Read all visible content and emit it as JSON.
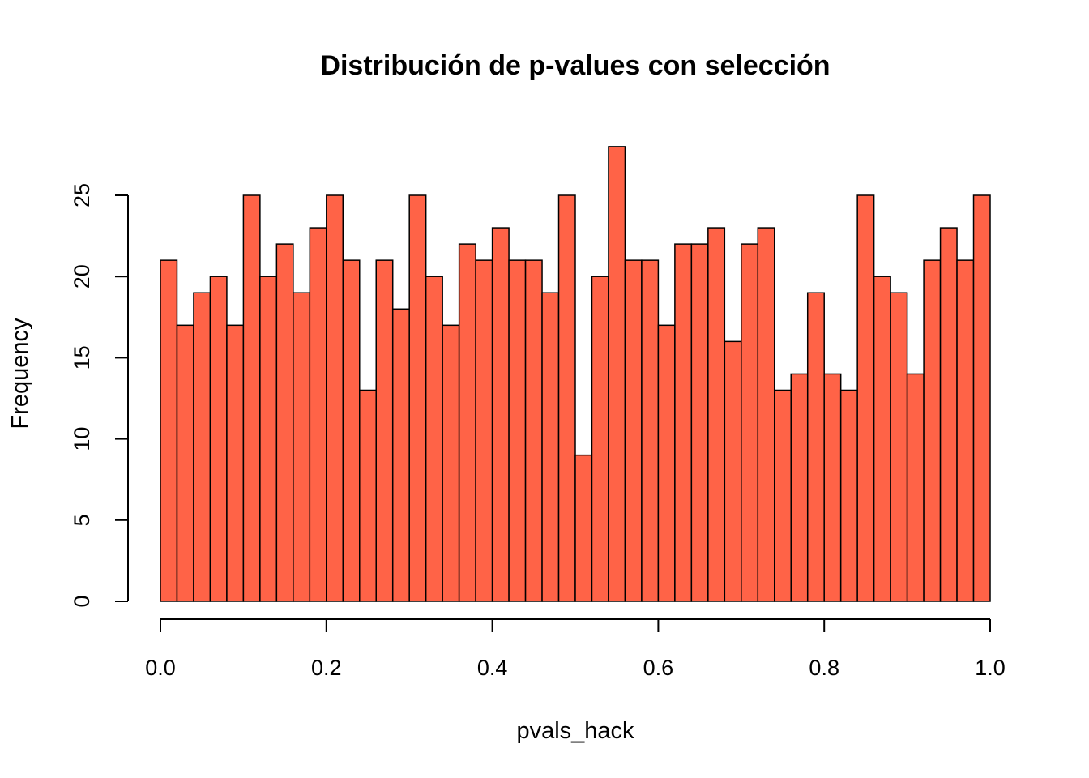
{
  "chart_data": {
    "type": "bar",
    "title": "Distribución de p-values con selección",
    "xlabel": "pvals_hack",
    "ylabel": "Frequency",
    "bar_color": "#FF6347",
    "xlim": [
      0.0,
      1.0
    ],
    "ylim": [
      0,
      28
    ],
    "x_ticks": [
      0.0,
      0.2,
      0.4,
      0.6,
      0.8,
      1.0
    ],
    "x_tick_labels": [
      "0.0",
      "0.2",
      "0.4",
      "0.6",
      "0.8",
      "1.0"
    ],
    "y_ticks": [
      0,
      5,
      10,
      15,
      20,
      25
    ],
    "y_tick_labels": [
      "0",
      "5",
      "10",
      "15",
      "20",
      "25"
    ],
    "bin_width": 0.02,
    "bin_start": 0.0,
    "values": [
      21,
      17,
      19,
      20,
      17,
      25,
      20,
      22,
      19,
      23,
      25,
      21,
      13,
      21,
      18,
      25,
      20,
      17,
      22,
      21,
      23,
      21,
      21,
      19,
      25,
      9,
      20,
      28,
      21,
      21,
      17,
      22,
      22,
      23,
      16,
      22,
      23,
      13,
      14,
      19,
      14,
      13,
      25,
      20,
      19,
      14,
      21,
      23,
      21,
      25
    ]
  }
}
